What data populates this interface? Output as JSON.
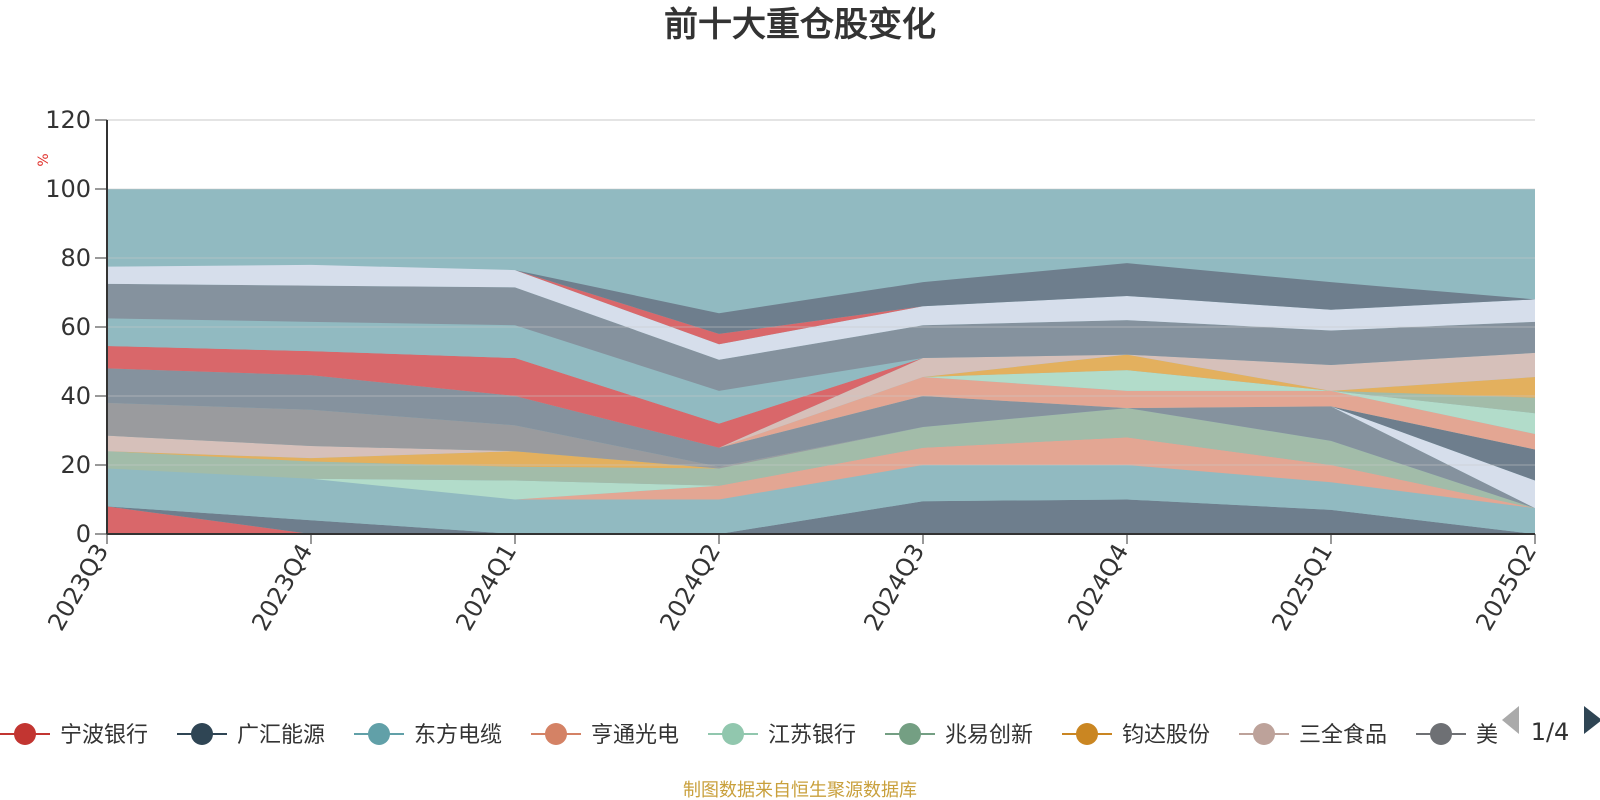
{
  "chart_data": {
    "type": "area",
    "title": "前十大重仓股变化",
    "ylabel": "%",
    "ylim": [
      0,
      120
    ],
    "y_ticks": [
      0,
      20,
      40,
      60,
      80,
      100,
      120
    ],
    "x": [
      "2023Q3",
      "2023Q4",
      "2024Q1",
      "2024Q2",
      "2024Q3",
      "2024Q4",
      "2025Q1",
      "2025Q2"
    ],
    "top_fill_value": 100,
    "top_fill_color": "#91bac1",
    "legend": {
      "page_indicator": "1/4",
      "items": [
        {
          "name": "宁波银行",
          "color": "#c23531"
        },
        {
          "name": "广汇能源",
          "color": "#2f4554"
        },
        {
          "name": "东方电缆",
          "color": "#61a0a8"
        },
        {
          "name": "亨通光电",
          "color": "#d48265"
        },
        {
          "name": "江苏银行",
          "color": "#91c7ae"
        },
        {
          "name": "兆易创新",
          "color": "#749f83"
        },
        {
          "name": "钧达股份",
          "color": "#ca8622"
        },
        {
          "name": "三全食品",
          "color": "#bda29a"
        },
        {
          "name": "美",
          "color": "#6e7074"
        }
      ]
    },
    "stacked_bands": [
      {
        "color": "#d9676a",
        "lower": [
          0,
          0,
          0,
          0,
          0,
          0,
          0,
          0
        ],
        "upper": [
          8,
          0,
          0,
          0,
          0,
          0,
          0,
          0
        ]
      },
      {
        "color": "#6e7e8d",
        "lower": [
          8,
          0,
          0,
          0,
          0,
          0,
          0,
          0
        ],
        "upper": [
          8,
          4,
          0,
          0,
          9.5,
          10,
          7,
          0
        ]
      },
      {
        "color": "#91bac1",
        "lower": [
          8,
          4,
          0,
          0,
          9.5,
          10,
          7,
          0
        ],
        "upper": [
          19,
          16,
          10,
          10,
          20,
          20,
          15,
          7.5
        ]
      },
      {
        "color": "#e3a693",
        "lower": [
          19,
          16,
          10,
          10,
          20,
          20,
          15,
          7.5
        ],
        "upper": [
          19,
          16,
          10,
          14,
          25,
          28,
          20,
          7.5
        ]
      },
      {
        "color": "#b2dcca",
        "lower": [
          19,
          16,
          10,
          14,
          25,
          28,
          20,
          7.5
        ],
        "upper": [
          19,
          16,
          15.5,
          14,
          25,
          28,
          20,
          7.5
        ]
      },
      {
        "color": "#a2bca9",
        "lower": [
          19,
          16,
          15.5,
          14,
          25,
          28,
          20,
          7.5
        ],
        "upper": [
          24,
          21,
          19.5,
          19,
          31,
          36.5,
          27,
          7.5
        ]
      },
      {
        "color": "#e3b05e",
        "lower": [
          24,
          21,
          19.5,
          19,
          31,
          36.5,
          27,
          7.5
        ],
        "upper": [
          24,
          22,
          24,
          19,
          31,
          36.5,
          27,
          7.5
        ]
      },
      {
        "color": "#d6c0ba",
        "lower": [
          24,
          22,
          24,
          19,
          31,
          36.5,
          27,
          7.5
        ],
        "upper": [
          28.5,
          25.5,
          24,
          19,
          31,
          36.5,
          27,
          7.5
        ]
      },
      {
        "color": "#9a9b9e",
        "lower": [
          28.5,
          25.5,
          24,
          19,
          31,
          36.5,
          27,
          7.5
        ],
        "upper": [
          38,
          36,
          31.5,
          19.5,
          31,
          36.5,
          27,
          7.5
        ]
      },
      {
        "color": "#85929e",
        "lower": [
          38,
          36,
          31.5,
          19.5,
          31,
          36.5,
          27,
          7.5
        ],
        "upper": [
          48,
          46,
          40,
          25,
          40,
          36.5,
          37,
          7.5
        ]
      },
      {
        "color": "#ffffff",
        "lower": [
          48,
          46,
          40,
          25,
          40,
          36.5,
          37,
          7.5
        ],
        "upper": [
          48,
          46,
          40,
          25,
          40,
          36.5,
          37,
          7.5
        ]
      },
      {
        "color": "#d6deeb",
        "lower": [
          48,
          46,
          40,
          25,
          40,
          36.5,
          37,
          7.5
        ],
        "upper": [
          48,
          46,
          40,
          25,
          40,
          36.5,
          37,
          15.5
        ]
      },
      {
        "color": "#6e7e8d",
        "lower": [
          48,
          46,
          40,
          25,
          40,
          36.5,
          37,
          15.5
        ],
        "upper": [
          48,
          46,
          40,
          25,
          40,
          36.5,
          37,
          24.5
        ]
      },
      {
        "color": "#e3a693",
        "lower": [
          48,
          46,
          40,
          25,
          40,
          36.5,
          37,
          24.5
        ],
        "upper": [
          48,
          46,
          40,
          25,
          45.5,
          41.5,
          41.5,
          29
        ]
      },
      {
        "color": "#b2dcca",
        "lower": [
          48,
          46,
          40,
          25,
          45.5,
          41.5,
          41.5,
          29
        ],
        "upper": [
          48,
          46,
          40,
          25,
          45.5,
          47.5,
          41.5,
          35
        ]
      },
      {
        "color": "#a2bca9",
        "lower": [
          48,
          46,
          40,
          25,
          45.5,
          47.5,
          41.5,
          35
        ],
        "upper": [
          48,
          46,
          40,
          25,
          45.5,
          47.5,
          41.5,
          39.5
        ]
      },
      {
        "color": "#e3b05e",
        "lower": [
          48,
          46,
          40,
          25,
          45.5,
          47.5,
          41.5,
          39.5
        ],
        "upper": [
          48,
          46,
          40,
          25,
          45.5,
          52,
          41.5,
          45.5
        ]
      },
      {
        "color": "#d6c0ba",
        "lower": [
          48,
          46,
          40,
          25,
          45.5,
          52,
          41.5,
          45.5
        ],
        "upper": [
          48,
          46,
          40,
          25,
          51,
          52,
          49,
          52.5
        ]
      },
      {
        "color": "#d9676a",
        "lower": [
          48,
          46,
          40,
          25,
          51,
          52,
          49,
          52.5
        ],
        "upper": [
          54.5,
          53,
          51,
          32,
          51,
          52,
          49,
          52.5
        ]
      },
      {
        "color": "#91bac1",
        "lower": [
          54.5,
          53,
          51,
          32,
          51,
          52,
          49,
          52.5
        ],
        "upper": [
          62.5,
          61.5,
          60.5,
          41.5,
          51,
          52,
          49,
          52.5
        ]
      },
      {
        "color": "#85929e",
        "lower": [
          62.5,
          61.5,
          60.5,
          41.5,
          51,
          52,
          49,
          52.5
        ],
        "upper": [
          72.5,
          72,
          71.5,
          50.5,
          60.5,
          62,
          59,
          61.5
        ]
      },
      {
        "color": "#d6deeb",
        "lower": [
          72.5,
          72,
          71.5,
          50.5,
          60.5,
          62,
          59,
          61.5
        ],
        "upper": [
          77.5,
          78,
          76.5,
          55,
          66,
          69,
          65,
          68
        ]
      },
      {
        "color": "#d9676a",
        "lower": [
          77.5,
          78,
          76.5,
          55,
          66,
          69,
          65,
          68
        ],
        "upper": [
          77.5,
          78,
          76.5,
          58,
          66,
          69,
          65,
          68
        ]
      },
      {
        "color": "#6e7e8d",
        "lower": [
          77.5,
          78,
          76.5,
          58,
          66,
          69,
          65,
          68
        ],
        "upper": [
          77.5,
          78,
          76.5,
          64,
          73,
          78.5,
          73,
          68
        ]
      }
    ]
  },
  "footer": {
    "source_text": "制图数据来自恒生聚源数据库"
  }
}
